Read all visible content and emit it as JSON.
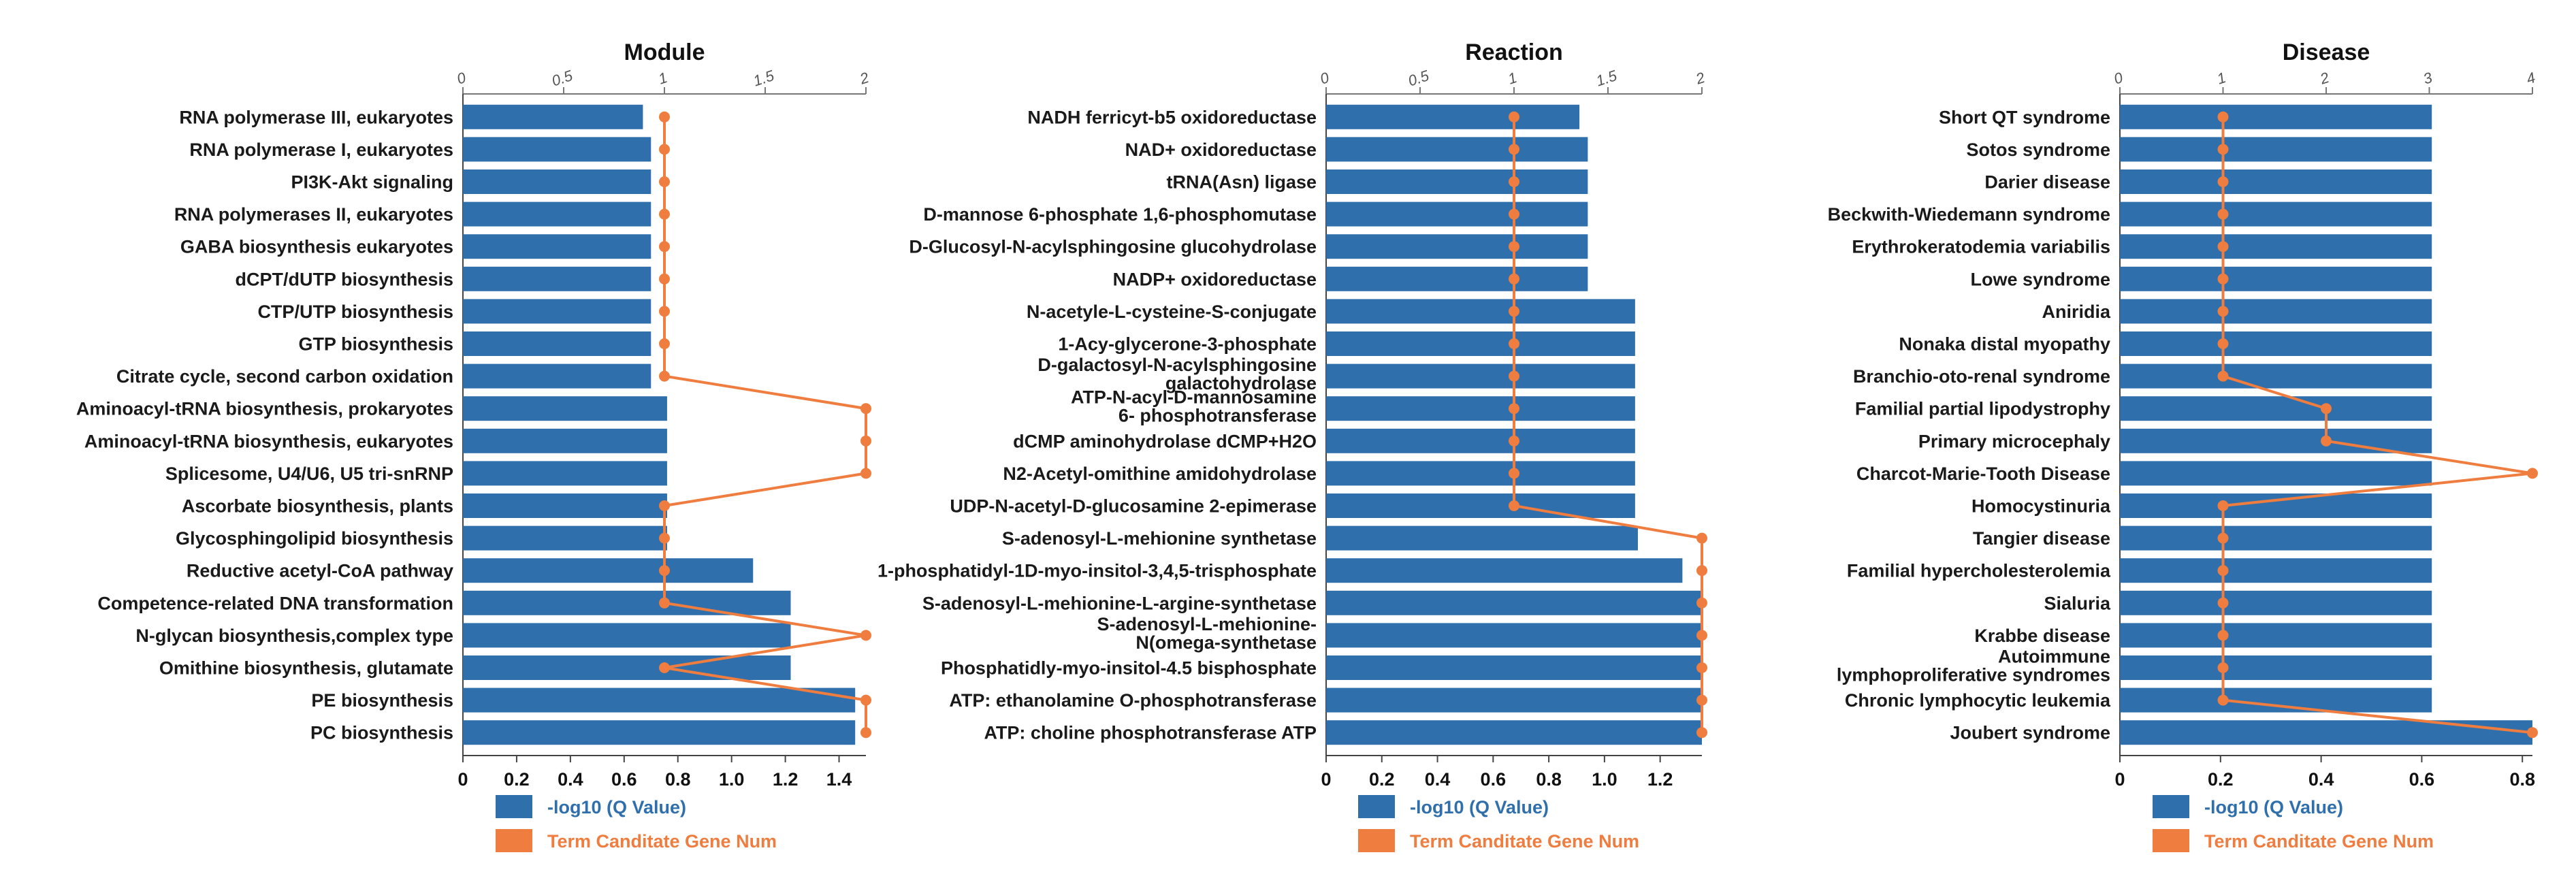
{
  "legend": {
    "bar_label": "-log10 (Q Value)",
    "line_label": "Term Canditate Gene Num"
  },
  "colors": {
    "bar": "#2f6fab",
    "line": "#ee7d3f",
    "bar_text": "#2f6fab",
    "line_text": "#ee7d3f"
  },
  "chart_data": [
    {
      "type": "bar",
      "title": "Module",
      "categories": [
        "RNA polymerase III, eukaryotes",
        "RNA polymerase I, eukaryotes",
        "PI3K-Akt signaling",
        "RNA polymerases II, eukaryotes",
        "GABA biosynthesis eukaryotes",
        "dCPT/dUTP biosynthesis",
        "CTP/UTP biosynthesis",
        "GTP biosynthesis",
        "Citrate cycle, second carbon oxidation",
        "Aminoacyl-tRNA biosynthesis, prokaryotes",
        "Aminoacyl-tRNA biosynthesis, eukaryotes",
        "Splicesome, U4/U6, U5 tri-snRNP",
        "Ascorbate biosynthesis, plants",
        "Glycosphingolipid biosynthesis",
        "Reductive acetyl-CoA pathway",
        "Competence-related DNA transformation",
        "N-glycan biosynthesis,complex type",
        "Omithine biosynthesis, glutamate",
        "PE biosynthesis",
        "PC biosynthesis"
      ],
      "series": [
        {
          "name": "-log10 (Q Value)",
          "type": "bar",
          "values": [
            0.67,
            0.7,
            0.7,
            0.7,
            0.7,
            0.7,
            0.7,
            0.7,
            0.7,
            0.76,
            0.76,
            0.76,
            0.76,
            0.76,
            1.08,
            1.22,
            1.22,
            1.22,
            1.46,
            1.46
          ]
        },
        {
          "name": "Term Canditate Gene Num",
          "type": "line",
          "values": [
            1,
            1,
            1,
            1,
            1,
            1,
            1,
            1,
            1,
            2,
            2,
            2,
            1,
            1,
            1,
            1,
            2,
            1,
            2,
            2
          ]
        }
      ],
      "bottom_axis": {
        "ticks": [
          0,
          0.2,
          0.4,
          0.6,
          0.8,
          1,
          1.2,
          1.4
        ],
        "tick_labels": [
          "0",
          "0.2",
          "0.4",
          "0.6",
          "0.8",
          "1.0",
          "1.2",
          "1.4"
        ],
        "range": [
          0,
          1.5
        ]
      },
      "top_axis": {
        "ticks": [
          0,
          0.5,
          1,
          1.5,
          2
        ],
        "tick_labels": [
          "0",
          "0.5",
          "1",
          "1.5",
          "2"
        ],
        "range": [
          0,
          2
        ]
      }
    },
    {
      "type": "bar",
      "title": "Reaction",
      "categories": [
        "NADH ferricyt-b5 oxidoreductase",
        "NAD+ oxidoreductase",
        "tRNA(Asn) ligase",
        "D-mannose 6-phosphate 1,6-phosphomutase",
        "D-Glucosyl-N-acylsphingosine glucohydrolase",
        "NADP+ oxidoreductase",
        "N-acetyle-L-cysteine-S-conjugate",
        "1-Acy-glycerone-3-phosphate",
        "D-galactosyl-N-acylsphingosine\ngalactohydrolase",
        "ATP-N-acyl-D-mannosamine\n6- phosphotransferase",
        "dCMP aminohydrolase dCMP+H2O",
        "N2-Acetyl-omithine amidohydrolase",
        "UDP-N-acetyl-D-glucosamine 2-epimerase",
        "S-adenosyl-L-mehionine synthetase",
        "1-phosphatidyl-1D-myo-insitol-3,4,5-trisphosphate",
        "S-adenosyl-L-mehionine-L-argine-synthetase",
        "S-adenosyl-L-mehionine-\nN(omega-synthetase",
        "Phosphatidly-myo-insitol-4.5 bisphosphate",
        "ATP: ethanolamine O-phosphotransferase",
        "ATP: choline phosphotransferase ATP"
      ],
      "series": [
        {
          "name": "-log10 (Q Value)",
          "type": "bar",
          "values": [
            0.91,
            0.94,
            0.94,
            0.94,
            0.94,
            0.94,
            1.11,
            1.11,
            1.11,
            1.11,
            1.11,
            1.11,
            1.11,
            1.12,
            1.28,
            1.35,
            1.35,
            1.35,
            1.35,
            1.35
          ]
        },
        {
          "name": "Term Canditate Gene Num",
          "type": "line",
          "values": [
            1,
            1,
            1,
            1,
            1,
            1,
            1,
            1,
            1,
            1,
            1,
            1,
            1,
            2,
            2,
            2,
            2,
            2,
            2,
            2
          ]
        }
      ],
      "bottom_axis": {
        "ticks": [
          0,
          0.2,
          0.4,
          0.6,
          0.8,
          1,
          1.2
        ],
        "tick_labels": [
          "0",
          "0.2",
          "0.4",
          "0.6",
          "0.8",
          "1.0",
          "1.2"
        ],
        "range": [
          0,
          1.35
        ]
      },
      "top_axis": {
        "ticks": [
          0,
          0.5,
          1,
          1.5,
          2
        ],
        "tick_labels": [
          "0",
          "0.5",
          "1",
          "1.5",
          "2"
        ],
        "range": [
          0,
          2
        ]
      }
    },
    {
      "type": "bar",
      "title": "Disease",
      "categories": [
        "Short QT syndrome",
        "Sotos syndrome",
        "Darier disease",
        "Beckwith-Wiedemann syndrome",
        "Erythrokeratodemia variabilis",
        "Lowe syndrome",
        "Aniridia",
        "Nonaka distal myopathy",
        "Branchio-oto-renal syndrome",
        "Familial partial lipodystrophy",
        "Primary microcephaly",
        "Charcot-Marie-Tooth Disease",
        "Homocystinuria",
        "Tangier disease",
        "Familial hypercholesterolemia",
        "Sialuria",
        "Krabbe disease",
        "Autoimmune\nlymphoproliferative syndromes",
        "Chronic lymphocytic leukemia",
        "Joubert syndrome"
      ],
      "series": [
        {
          "name": "-log10 (Q Value)",
          "type": "bar",
          "values": [
            0.62,
            0.62,
            0.62,
            0.62,
            0.62,
            0.62,
            0.62,
            0.62,
            0.62,
            0.62,
            0.62,
            0.62,
            0.62,
            0.62,
            0.62,
            0.62,
            0.62,
            0.62,
            0.62,
            0.82
          ]
        },
        {
          "name": "Term Canditate Gene Num",
          "type": "line",
          "values": [
            1,
            1,
            1,
            1,
            1,
            1,
            1,
            1,
            1,
            2,
            2,
            4,
            1,
            1,
            1,
            1,
            1,
            1,
            1,
            4
          ]
        }
      ],
      "bottom_axis": {
        "ticks": [
          0,
          0.2,
          0.4,
          0.6,
          0.8
        ],
        "tick_labels": [
          "0",
          "0.2",
          "0.4",
          "0.6",
          "0.8"
        ],
        "range": [
          0,
          0.82
        ]
      },
      "top_axis": {
        "ticks": [
          0,
          1,
          2,
          3,
          4
        ],
        "tick_labels": [
          "0",
          "1",
          "2",
          "3",
          "4"
        ],
        "range": [
          0,
          4
        ]
      }
    }
  ]
}
